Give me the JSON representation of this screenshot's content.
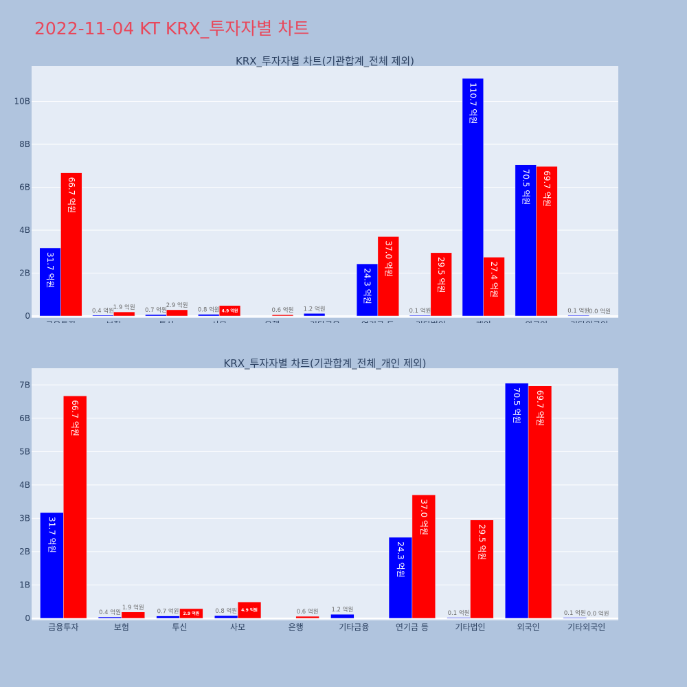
{
  "page": {
    "title": "2022-11-04 KT KRX_투자자별 차트"
  },
  "colors": {
    "buy": "#0000ff",
    "sell": "#ff0000",
    "plot_bg": "#e5ecf6",
    "page_bg": "#b0c4de",
    "title": "#e8475a"
  },
  "chart_data": [
    {
      "type": "bar",
      "title": "KRX_투자자별 차트(기관합계_전체 제외)",
      "categories": [
        "금융투자",
        "보험",
        "투신",
        "사모",
        "은행",
        "기타금융",
        "연기금 등",
        "기타법인",
        "개인",
        "외국인",
        "기타외국인"
      ],
      "series": [
        {
          "values": [
            3.17,
            0.04,
            0.07,
            0.08,
            0.0,
            0.12,
            2.43,
            0.01,
            11.07,
            7.05,
            0.01
          ],
          "labels": [
            "31.7 억원",
            "0.4 억원",
            "0.7 억원",
            "0.8 억원",
            "",
            "1.2 억원",
            "24.3 억원",
            "0.1 억원",
            "110.7 억원",
            "70.5 억원",
            "0.1 억원"
          ]
        },
        {
          "values": [
            6.67,
            0.19,
            0.29,
            0.49,
            0.06,
            0.0,
            3.7,
            2.95,
            2.74,
            6.97,
            0.0
          ],
          "labels": [
            "66.7 억원",
            "1.9 억원",
            "2.9 억원",
            "4.9 억원",
            "0.6 억원",
            "",
            "37.0 억원",
            "29.5 억원",
            "27.4 억원",
            "69.7 억원",
            "0.0 억원"
          ]
        }
      ],
      "yticks": [
        0,
        2,
        4,
        6,
        8,
        10
      ],
      "yticklabels": [
        "0",
        "2B",
        "4B",
        "6B",
        "8B",
        "10B"
      ],
      "ylim": [
        0,
        11.65
      ]
    },
    {
      "type": "bar",
      "title": "KRX_투자자별 차트(기관합계_전체_개인 제외)",
      "categories": [
        "금융투자",
        "보험",
        "투신",
        "사모",
        "은행",
        "기타금융",
        "연기금 등",
        "기타법인",
        "외국인",
        "기타외국인"
      ],
      "series": [
        {
          "values": [
            3.17,
            0.04,
            0.07,
            0.08,
            0.0,
            0.12,
            2.43,
            0.01,
            7.05,
            0.01
          ],
          "labels": [
            "31.7 억원",
            "0.4 억원",
            "0.7 억원",
            "0.8 억원",
            "",
            "1.2 억원",
            "24.3 억원",
            "0.1 억원",
            "70.5 억원",
            "0.1 억원"
          ]
        },
        {
          "values": [
            6.67,
            0.19,
            0.29,
            0.49,
            0.06,
            0.0,
            3.7,
            2.95,
            6.97,
            0.0
          ],
          "labels": [
            "66.7 억원",
            "1.9 억원",
            "2.9 억원",
            "4.9 억원",
            "0.6 억원",
            "",
            "37.0 억원",
            "29.5 억원",
            "69.7 억원",
            "0.0 억원"
          ]
        }
      ],
      "yticks": [
        0,
        1,
        2,
        3,
        4,
        5,
        6,
        7
      ],
      "yticklabels": [
        "0",
        "1B",
        "2B",
        "3B",
        "4B",
        "5B",
        "6B",
        "7B"
      ],
      "ylim": [
        0,
        7.5
      ]
    }
  ]
}
